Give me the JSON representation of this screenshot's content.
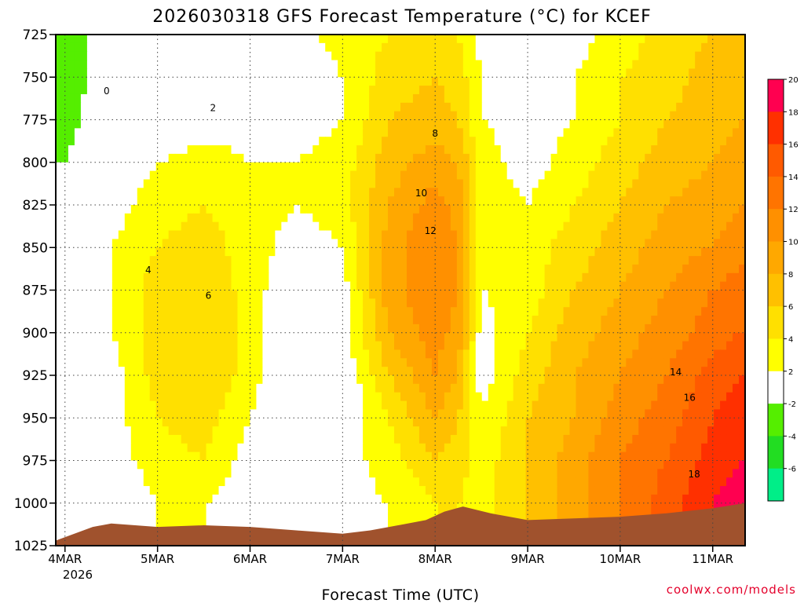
{
  "chart_data": {
    "type": "heatmap",
    "title": "2026030318 GFS Forecast Temperature (°C) for KCEF",
    "xlabel": "Forecast Time (UTC)",
    "ylabel": "",
    "credit": "coolwx.com/models",
    "y_ticks": [
      "725",
      "750",
      "775",
      "800",
      "825",
      "850",
      "875",
      "900",
      "925",
      "950",
      "975",
      "1000",
      "1025"
    ],
    "y_values": [
      725,
      750,
      775,
      800,
      825,
      850,
      875,
      900,
      925,
      950,
      975,
      1000,
      1025
    ],
    "ylim": [
      725,
      1025
    ],
    "x_ticks": [
      "4MAR",
      "5MAR",
      "6MAR",
      "7MAR",
      "8MAR",
      "9MAR",
      "10MAR",
      "11MAR"
    ],
    "x_values": [
      0,
      1,
      2,
      3,
      4,
      5,
      6,
      7
    ],
    "x_year": "2026",
    "xlim": [
      -0.1,
      7.35
    ],
    "colorbar": {
      "levels": [
        "-6",
        "-4",
        "-2",
        "2",
        "4",
        "6",
        "8",
        "10",
        "12",
        "14",
        "16",
        "18",
        "20"
      ],
      "colors": [
        "#00ee88",
        "#22dd22",
        "#55ee00",
        "#ffffff",
        "#ffff00",
        "#ffe000",
        "#ffc000",
        "#ffa800",
        "#ff9000",
        "#ff7400",
        "#ff5a00",
        "#ff3000",
        "#ff0050"
      ]
    },
    "series": [
      {
        "name": "temperature_grid_C",
        "x": [
          0.0,
          0.5,
          1.0,
          1.5,
          2.0,
          2.5,
          3.0,
          3.5,
          4.0,
          4.25,
          4.5,
          5.0,
          5.5,
          6.0,
          6.5,
          7.0,
          7.3
        ],
        "y": [
          725,
          750,
          775,
          800,
          825,
          850,
          875,
          900,
          925,
          950,
          975,
          1000
        ],
        "values": [
          [
            -3,
            -1,
            1,
            0,
            1,
            1,
            3,
            4,
            5,
            4,
            1,
            -1,
            1,
            3,
            5,
            6,
            6
          ],
          [
            -3,
            -1,
            0,
            -1,
            0,
            0,
            2,
            5,
            6,
            5,
            2,
            0,
            2,
            4,
            5,
            7,
            7
          ],
          [
            -3,
            0,
            0,
            1,
            1,
            1,
            2,
            6,
            7,
            6,
            2,
            1,
            2,
            4,
            6,
            7,
            8
          ],
          [
            -2,
            1,
            2,
            3,
            2,
            2,
            3,
            7,
            9,
            8,
            3,
            1,
            3,
            5,
            7,
            8,
            9
          ],
          [
            -2,
            1,
            3,
            4,
            3,
            2,
            3,
            8,
            11,
            9,
            3,
            2,
            4,
            6,
            8,
            9,
            10
          ],
          [
            -1,
            2,
            4,
            5,
            3,
            1,
            2,
            9,
            12,
            10,
            3,
            3,
            5,
            7,
            9,
            10,
            11
          ],
          [
            -1,
            2,
            5,
            6,
            3,
            0,
            1,
            9,
            12,
            10,
            2,
            3,
            6,
            8,
            10,
            12,
            13
          ],
          [
            -1,
            2,
            5,
            6,
            3,
            0,
            1,
            8,
            11,
            9,
            1,
            4,
            7,
            9,
            11,
            13,
            14
          ],
          [
            -1,
            1,
            5,
            6,
            3,
            -1,
            0,
            6,
            10,
            8,
            1,
            5,
            8,
            10,
            12,
            15,
            16
          ],
          [
            -1,
            1,
            4,
            5,
            2,
            -1,
            0,
            4,
            8,
            6,
            2,
            6,
            8,
            11,
            13,
            16,
            17
          ],
          [
            -2,
            1,
            3,
            4,
            1,
            0,
            1,
            3,
            6,
            5,
            3,
            6,
            9,
            12,
            14,
            17,
            18
          ],
          [
            -2,
            0,
            2,
            2,
            1,
            0,
            1,
            2,
            4,
            4,
            3,
            6,
            9,
            12,
            15,
            18,
            19
          ]
        ]
      }
    ],
    "contour_labels": [
      "0",
      "2",
      "4",
      "6",
      "8",
      "10",
      "12",
      "14",
      "16",
      "18"
    ],
    "terrain": {
      "name": "surface_pressure_hPa",
      "x": [
        -0.1,
        0.3,
        0.5,
        1.0,
        1.5,
        2.0,
        2.5,
        3.0,
        3.3,
        3.6,
        3.9,
        4.1,
        4.3,
        4.6,
        5.0,
        5.5,
        6.0,
        6.5,
        7.0,
        7.35
      ],
      "p": [
        1022,
        1014,
        1012,
        1014,
        1013,
        1014,
        1016,
        1018,
        1016,
        1013,
        1010,
        1005,
        1002,
        1006,
        1010,
        1009,
        1008,
        1006,
        1003,
        1000
      ]
    }
  }
}
